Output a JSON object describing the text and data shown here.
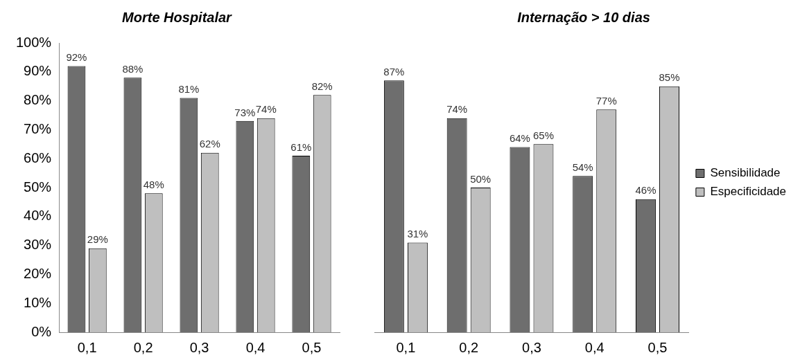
{
  "chart_data": [
    {
      "type": "bar",
      "title": "Morte Hospitalar",
      "categories": [
        "0,1",
        "0,2",
        "0,3",
        "0,4",
        "0,5"
      ],
      "series": [
        {
          "color": "#6e6e6e",
          "values": [
            92,
            88,
            81,
            73,
            61
          ],
          "value_labels": [
            "92%",
            "88%",
            "81%",
            "73%",
            "61%"
          ]
        },
        {
          "color": "#bfbfbf",
          "values": [
            29,
            48,
            62,
            74,
            82
          ],
          "value_labels": [
            "29%",
            "48%",
            "62%",
            "74%",
            "82%"
          ]
        }
      ],
      "ylim": [
        0,
        100
      ],
      "yticks": [
        {
          "value": 0,
          "label": "0%"
        },
        {
          "value": 10,
          "label": "10%"
        },
        {
          "value": 20,
          "label": "20%"
        },
        {
          "value": 30,
          "label": "30%"
        },
        {
          "value": 40,
          "label": "40%"
        },
        {
          "value": 50,
          "label": "50%"
        },
        {
          "value": 60,
          "label": "60%"
        },
        {
          "value": 70,
          "label": "70%"
        },
        {
          "value": 80,
          "label": "80%"
        },
        {
          "value": 90,
          "label": "90%"
        },
        {
          "value": 100,
          "label": "100%"
        }
      ],
      "grid": false,
      "legend": false
    },
    {
      "type": "bar",
      "title": "Internação > 10 dias",
      "categories": [
        "0,1",
        "0,2",
        "0,3",
        "0,4",
        "0,5"
      ],
      "series": [
        {
          "name": "Sensibilidade",
          "color": "#6e6e6e",
          "values": [
            87,
            74,
            64,
            54,
            46
          ],
          "value_labels": [
            "87%",
            "74%",
            "64%",
            "54%",
            "46%"
          ]
        },
        {
          "name": "Especificidade",
          "color": "#bfbfbf",
          "values": [
            31,
            50,
            65,
            77,
            85
          ],
          "value_labels": [
            "31%",
            "50%",
            "65%",
            "77%",
            "85%"
          ]
        }
      ],
      "ylim": [
        0,
        100
      ],
      "tick_labels": "x",
      "grid": false,
      "legend": "right"
    }
  ]
}
